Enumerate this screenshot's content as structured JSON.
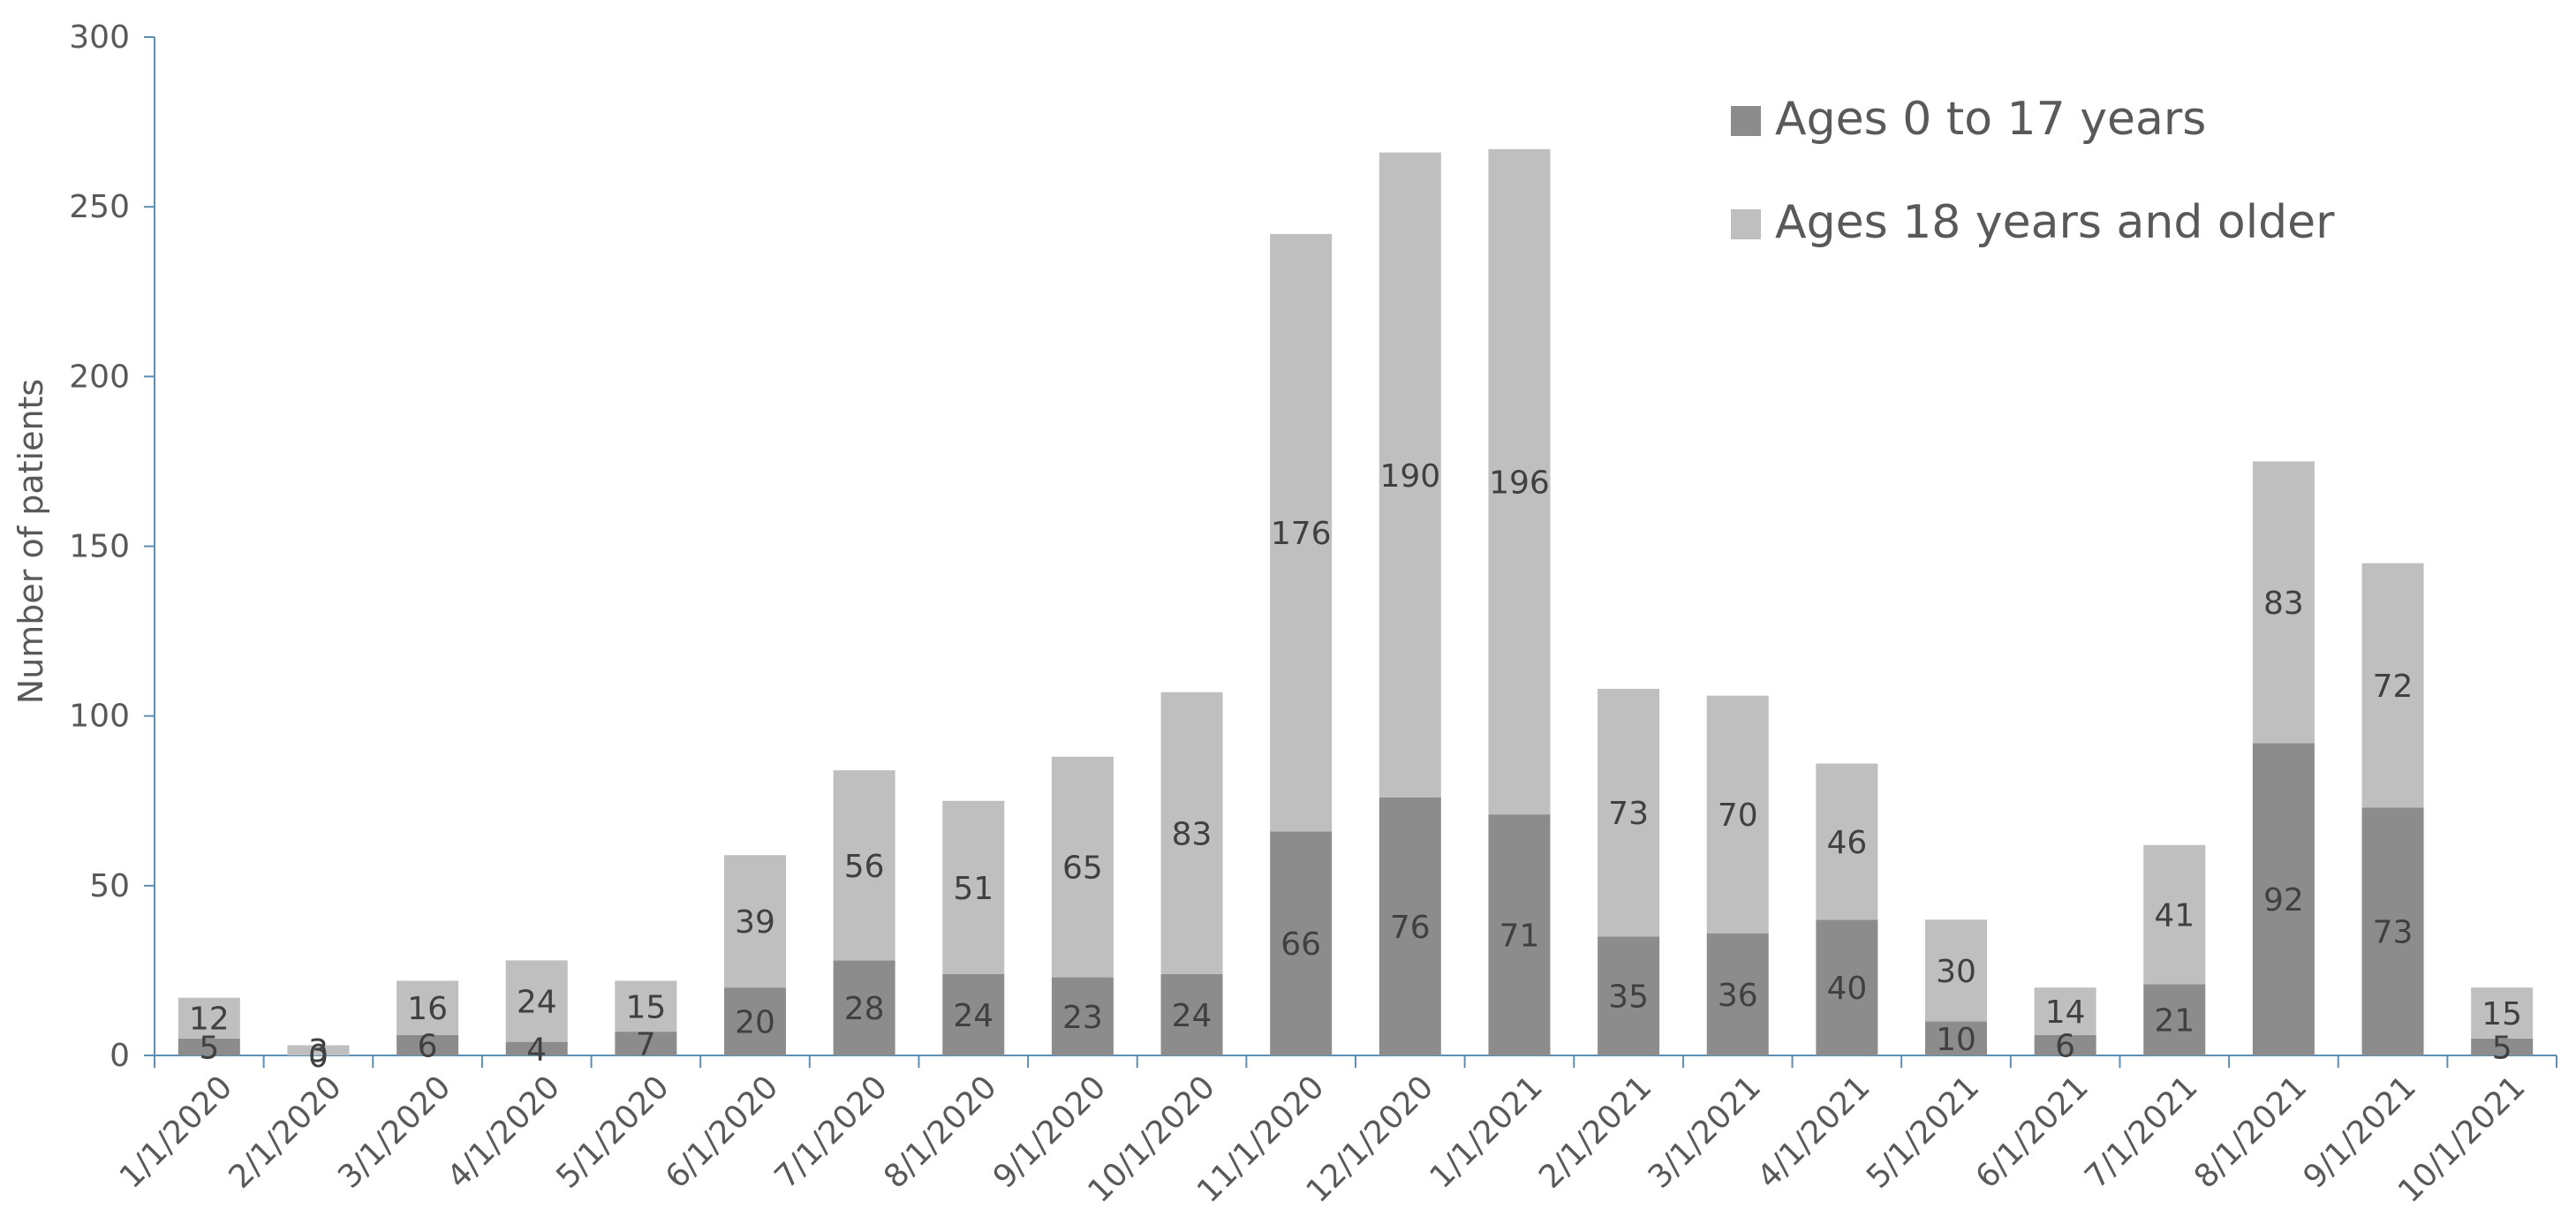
{
  "chart_data": {
    "type": "bar",
    "stacked": true,
    "title": "",
    "xlabel": "",
    "ylabel": "Number of patients",
    "ylim": [
      0,
      300
    ],
    "yticks": [
      0,
      50,
      100,
      150,
      200,
      250,
      300
    ],
    "grid": false,
    "legend_position": "top-right",
    "categories": [
      "1/1/2020",
      "2/1/2020",
      "3/1/2020",
      "4/1/2020",
      "5/1/2020",
      "6/1/2020",
      "7/1/2020",
      "8/1/2020",
      "9/1/2020",
      "10/1/2020",
      "11/1/2020",
      "12/1/2020",
      "1/1/2021",
      "2/1/2021",
      "3/1/2021",
      "4/1/2021",
      "5/1/2021",
      "6/1/2021",
      "7/1/2021",
      "8/1/2021",
      "9/1/2021",
      "10/1/2021"
    ],
    "series": [
      {
        "name": "Ages 0 to 17 years",
        "color": "#8c8c8c",
        "values": [
          5,
          0,
          6,
          4,
          7,
          20,
          28,
          24,
          23,
          24,
          66,
          76,
          71,
          35,
          36,
          40,
          10,
          6,
          21,
          92,
          73,
          5
        ]
      },
      {
        "name": "Ages 18 years and older",
        "color": "#bfbfbf",
        "values": [
          12,
          3,
          16,
          24,
          15,
          39,
          56,
          51,
          65,
          83,
          176,
          190,
          196,
          73,
          70,
          46,
          30,
          14,
          41,
          83,
          72,
          15
        ]
      }
    ]
  }
}
